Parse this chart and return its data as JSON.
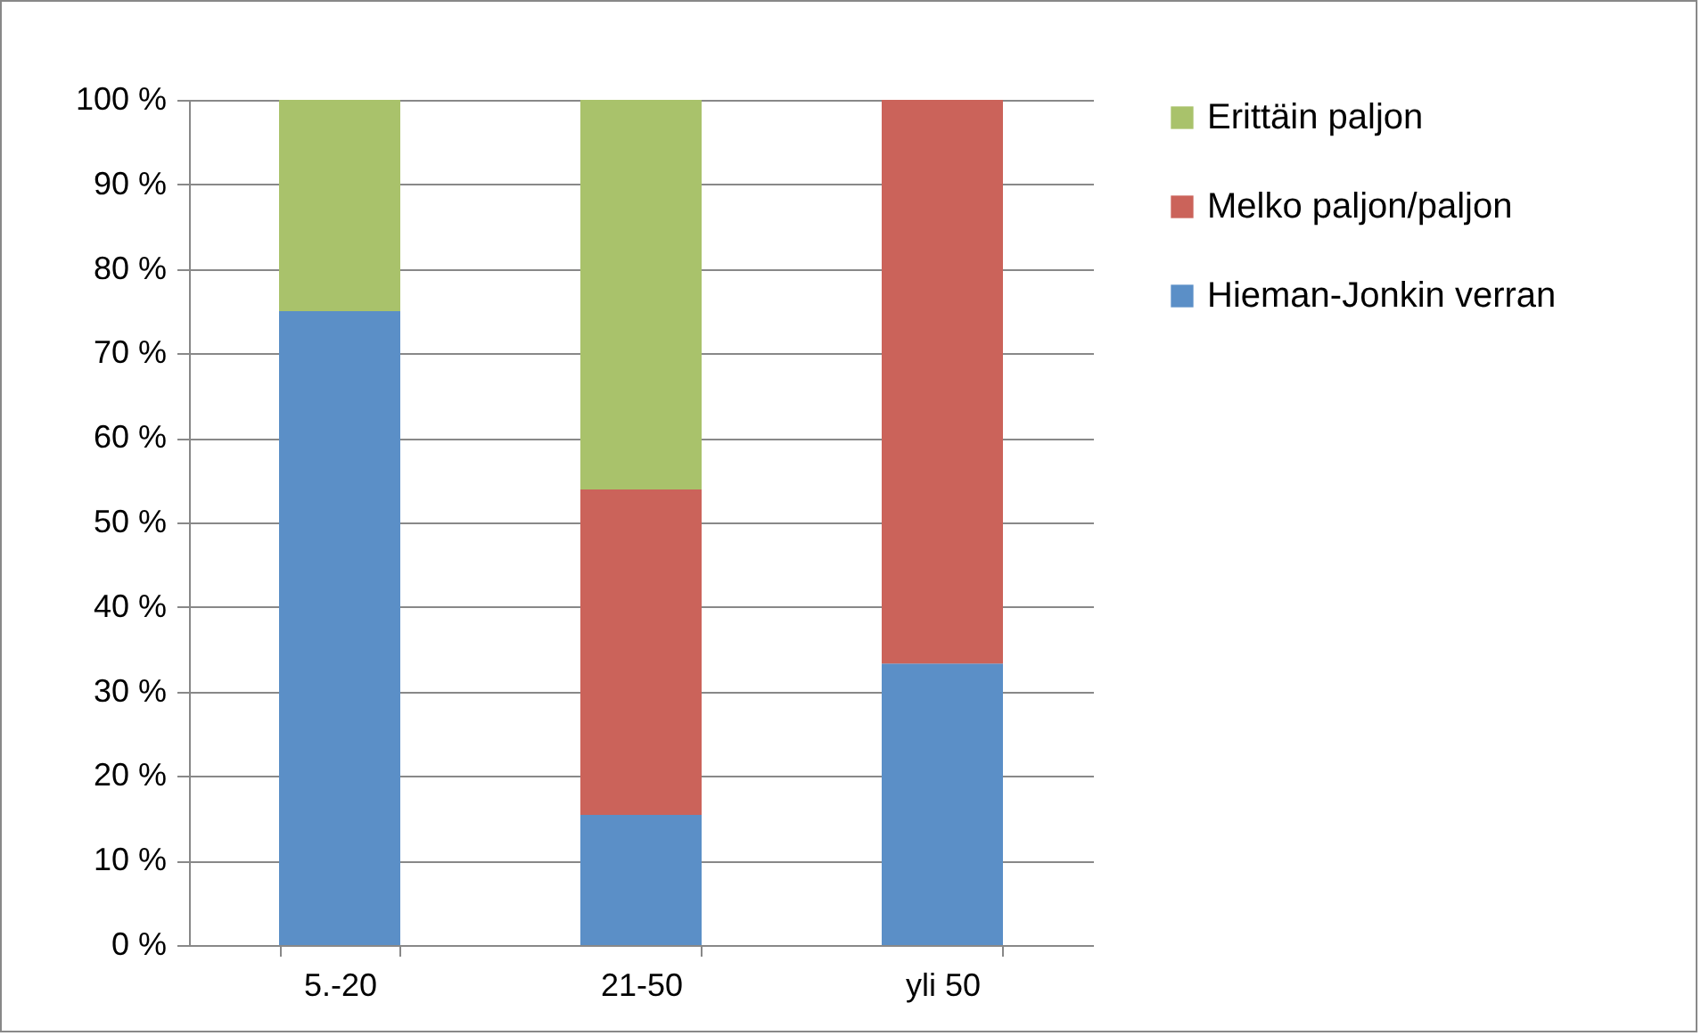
{
  "chart_data": {
    "type": "bar",
    "stacked": true,
    "categories": [
      "5.-20",
      "21-50",
      "yli 50"
    ],
    "series": [
      {
        "name": "Hieman-Jonkin verran",
        "color": "#5b8fc7",
        "values": [
          75,
          15.4,
          33.3
        ]
      },
      {
        "name": "Melko paljon/paljon",
        "color": "#cb635a",
        "values": [
          0,
          38.5,
          66.7
        ]
      },
      {
        "name": "Erittäin paljon",
        "color": "#a9c26b",
        "values": [
          25,
          46.1,
          0
        ]
      }
    ],
    "ylim": [
      0,
      100
    ],
    "yticks": [
      {
        "value": 0,
        "label": "0 %"
      },
      {
        "value": 10,
        "label": "10 %"
      },
      {
        "value": 20,
        "label": "20 %"
      },
      {
        "value": 30,
        "label": "30 %"
      },
      {
        "value": 40,
        "label": "40 %"
      },
      {
        "value": 50,
        "label": "50 %"
      },
      {
        "value": 60,
        "label": "60 %"
      },
      {
        "value": 70,
        "label": "70 %"
      },
      {
        "value": 80,
        "label": "80 %"
      },
      {
        "value": 90,
        "label": "90 %"
      },
      {
        "value": 100,
        "label": "100 %"
      }
    ],
    "grid": "y",
    "legend": "right"
  }
}
